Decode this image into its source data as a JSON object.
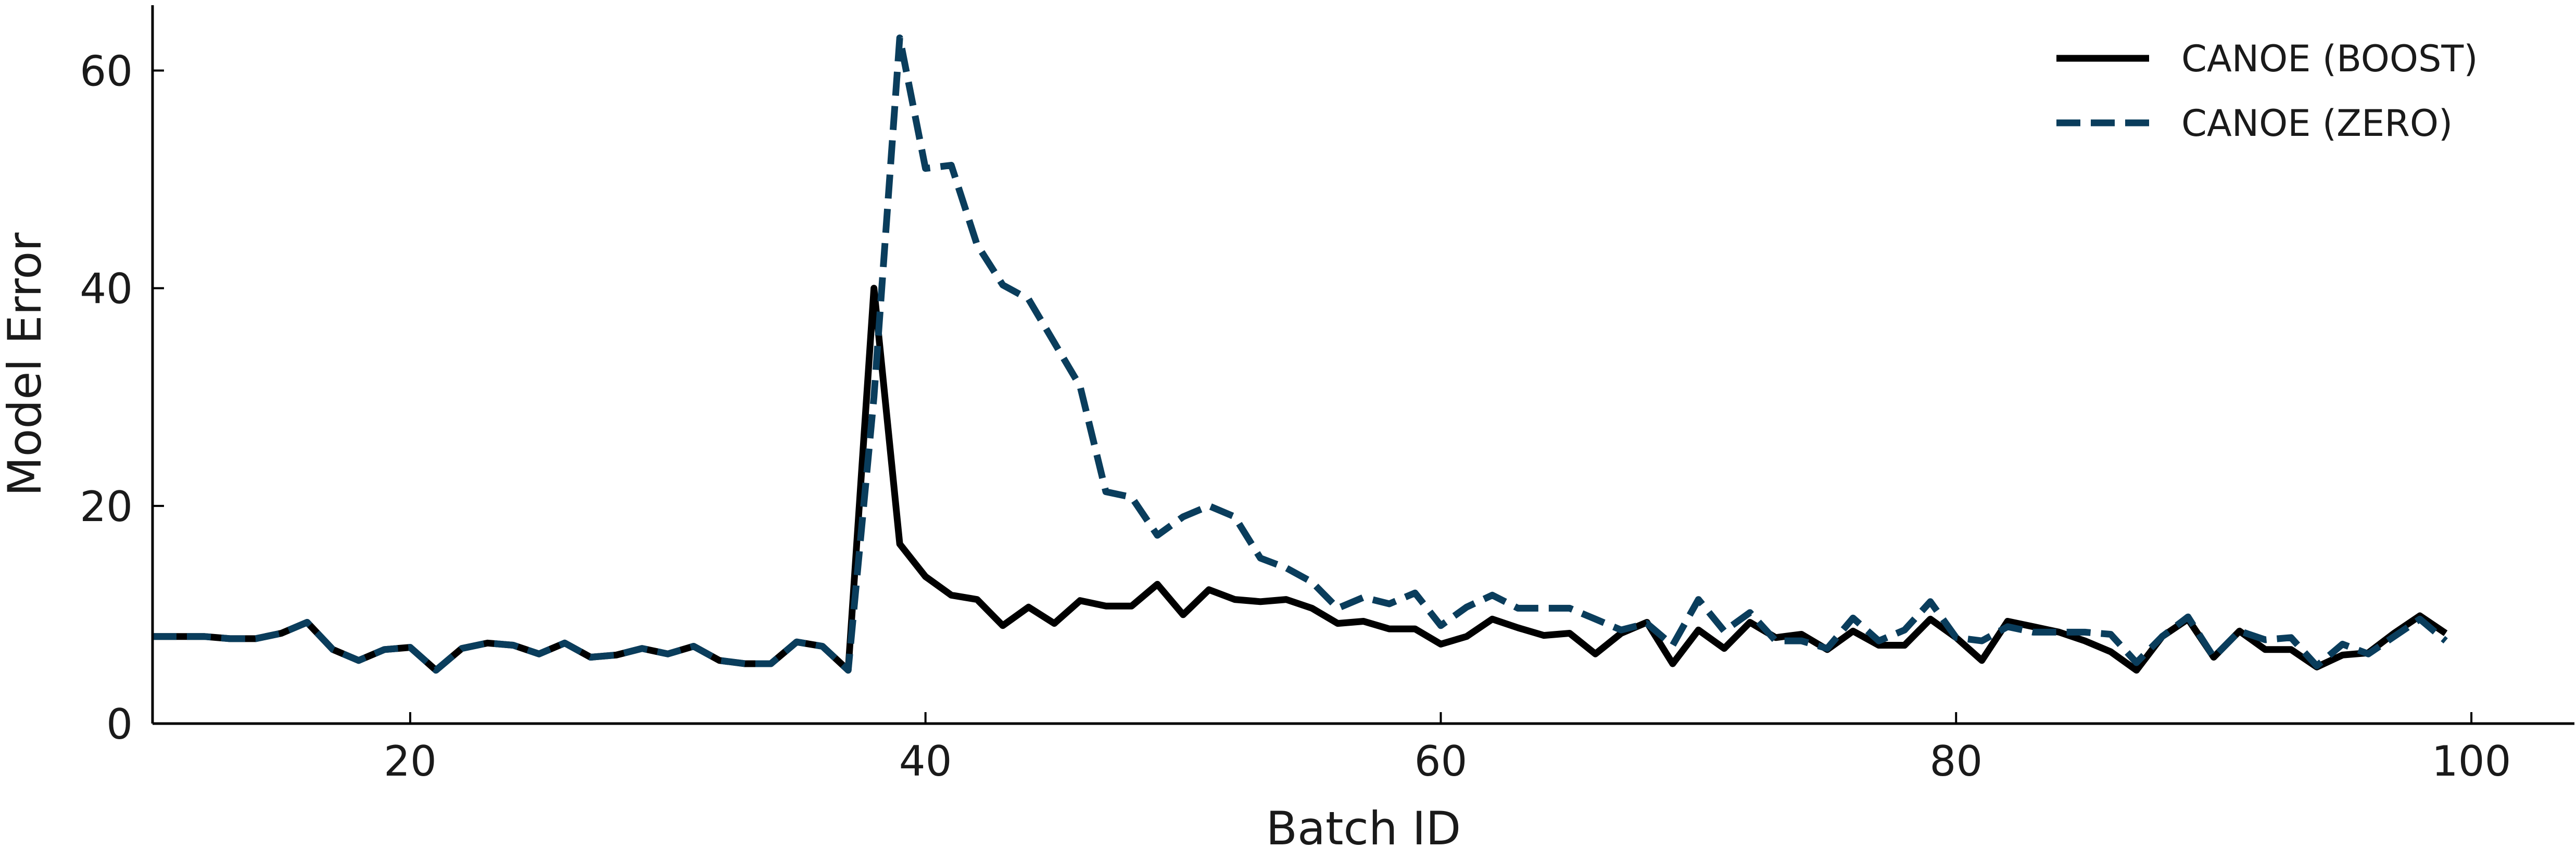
{
  "chart_data": {
    "type": "line",
    "title": "",
    "xlabel": "Batch ID",
    "ylabel": "Model Error",
    "xlim": [
      10,
      104
    ],
    "ylim": [
      0,
      66
    ],
    "xticks": [
      20,
      40,
      60,
      80,
      100
    ],
    "yticks": [
      0,
      20,
      40,
      60
    ],
    "grid": false,
    "legend_position": "top-right",
    "x": [
      10,
      11,
      12,
      13,
      14,
      15,
      16,
      17,
      18,
      19,
      20,
      21,
      22,
      23,
      24,
      25,
      26,
      27,
      28,
      29,
      30,
      31,
      32,
      33,
      34,
      35,
      36,
      37,
      38,
      39,
      40,
      41,
      42,
      43,
      44,
      45,
      46,
      47,
      48,
      49,
      50,
      51,
      52,
      53,
      54,
      55,
      56,
      57,
      58,
      59,
      60,
      61,
      62,
      63,
      64,
      65,
      66,
      67,
      68,
      69,
      70,
      71,
      72,
      73,
      74,
      75,
      76,
      77,
      78,
      79,
      80,
      81,
      82,
      83,
      84,
      85,
      86,
      87,
      88,
      89,
      90,
      91,
      92,
      93,
      94,
      95,
      96,
      97,
      98,
      99
    ],
    "series": [
      {
        "name": "CANOE (BOOST)",
        "color": "#000000",
        "dash": "solid",
        "values": [
          8.0,
          8.0,
          8.0,
          7.8,
          7.8,
          8.3,
          9.3,
          6.8,
          5.8,
          6.8,
          7.0,
          4.9,
          6.9,
          7.4,
          7.2,
          6.4,
          7.4,
          6.1,
          6.3,
          6.9,
          6.4,
          7.1,
          5.8,
          5.5,
          5.5,
          7.5,
          7.1,
          4.9,
          40.0,
          16.5,
          13.5,
          11.8,
          11.4,
          9.0,
          10.7,
          9.2,
          11.3,
          10.8,
          10.8,
          12.8,
          10.0,
          12.3,
          11.4,
          11.2,
          11.4,
          10.6,
          9.2,
          9.4,
          8.7,
          8.7,
          7.3,
          8.0,
          9.6,
          8.8,
          8.1,
          8.3,
          6.4,
          8.3,
          9.3,
          5.5,
          8.6,
          6.9,
          9.3,
          7.9,
          8.2,
          6.8,
          8.5,
          7.2,
          7.2,
          9.6,
          7.9,
          5.8,
          9.4,
          8.9,
          8.4,
          7.6,
          6.6,
          4.9,
          8.0,
          9.6,
          6.1,
          8.5,
          6.8,
          6.8,
          5.2,
          6.3,
          6.5,
          8.3,
          9.9,
          8.3
        ]
      },
      {
        "name": "CANOE (ZERO)",
        "color": "#0a3d5c",
        "dash": "dashed",
        "values": [
          8.0,
          8.0,
          8.0,
          7.8,
          7.8,
          8.3,
          9.3,
          6.8,
          5.8,
          6.8,
          7.0,
          4.9,
          6.9,
          7.4,
          7.2,
          6.4,
          7.4,
          6.1,
          6.3,
          6.9,
          6.4,
          7.1,
          5.8,
          5.5,
          5.5,
          7.5,
          7.1,
          4.9,
          30.0,
          63.0,
          51.0,
          51.3,
          44.0,
          40.3,
          39.0,
          35.0,
          31.0,
          21.3,
          20.8,
          17.3,
          19.0,
          20.0,
          19.0,
          15.2,
          14.3,
          13.0,
          10.6,
          11.6,
          11.0,
          12.0,
          9.0,
          10.7,
          11.8,
          10.6,
          10.6,
          10.6,
          9.6,
          8.6,
          9.2,
          7.2,
          11.4,
          8.5,
          10.2,
          7.6,
          7.6,
          6.9,
          9.7,
          7.6,
          8.6,
          11.2,
          7.9,
          7.6,
          8.9,
          8.4,
          8.4,
          8.4,
          8.2,
          5.6,
          8.0,
          9.8,
          6.1,
          8.5,
          7.7,
          7.9,
          5.3,
          7.3,
          6.4,
          8.0,
          9.6,
          7.6
        ]
      }
    ]
  }
}
